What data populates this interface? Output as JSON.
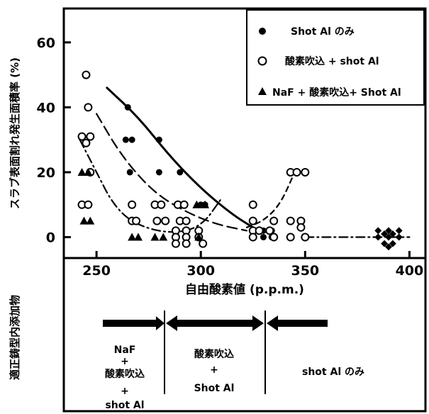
{
  "chart_data": {
    "type": "scatter",
    "title": "",
    "xlabel": "自由酸素値 (p.p.m.)",
    "ylabel": "スラブ表面割れ発生面積率 (%)",
    "xlim": [
      235,
      407
    ],
    "ylim": [
      -6,
      70
    ],
    "xticks": [
      250,
      300,
      350,
      400
    ],
    "yticks": [
      0,
      20,
      40,
      60
    ],
    "legend_position": "top-right",
    "series": [
      {
        "name": "Shot Al のみ",
        "marker": "filled-circle",
        "points": [
          [
            265,
            40
          ],
          [
            264,
            30
          ],
          [
            267,
            30
          ],
          [
            266,
            20
          ],
          [
            280,
            30
          ],
          [
            280,
            20
          ],
          [
            290,
            20
          ],
          [
            290,
            10
          ],
          [
            300,
            10
          ],
          [
            302,
            10
          ],
          [
            330,
            2
          ],
          [
            330,
            0
          ],
          [
            334,
            0
          ],
          [
            334,
            2
          ]
        ]
      },
      {
        "name": "酸素吹込 + shot Al",
        "marker": "open-circle",
        "points": [
          [
            245,
            50
          ],
          [
            246,
            40
          ],
          [
            243,
            31
          ],
          [
            245,
            29
          ],
          [
            247,
            31
          ],
          [
            247,
            20
          ],
          [
            243,
            10
          ],
          [
            246,
            10
          ],
          [
            267,
            10
          ],
          [
            267,
            5
          ],
          [
            269,
            5
          ],
          [
            278,
            10
          ],
          [
            281,
            10
          ],
          [
            279,
            5
          ],
          [
            283,
            5
          ],
          [
            289,
            10
          ],
          [
            292,
            10
          ],
          [
            290,
            5
          ],
          [
            293,
            5
          ],
          [
            288,
            2
          ],
          [
            288,
            0
          ],
          [
            288,
            -2
          ],
          [
            293,
            2
          ],
          [
            293,
            0
          ],
          [
            293,
            -2
          ],
          [
            299,
            2
          ],
          [
            299,
            0
          ],
          [
            301,
            -2
          ],
          [
            325,
            10
          ],
          [
            325,
            5
          ],
          [
            325,
            2
          ],
          [
            325,
            0
          ],
          [
            328,
            2
          ],
          [
            333,
            2
          ],
          [
            335,
            5
          ],
          [
            335,
            0
          ],
          [
            343,
            20
          ],
          [
            346,
            20
          ],
          [
            350,
            20
          ],
          [
            343,
            5
          ],
          [
            348,
            5
          ],
          [
            343,
            0
          ],
          [
            350,
            0
          ],
          [
            348,
            3
          ]
        ]
      },
      {
        "name": "NaF + 酸素吹込 + Shot Al",
        "marker": "filled-triangle",
        "points": [
          [
            243,
            20
          ],
          [
            246,
            20
          ],
          [
            244,
            5
          ],
          [
            247,
            5
          ],
          [
            267,
            0
          ],
          [
            270,
            0
          ],
          [
            278,
            0
          ],
          [
            282,
            0
          ],
          [
            298,
            10
          ],
          [
            302,
            10
          ],
          [
            299,
            0
          ]
        ]
      },
      {
        "name": "",
        "marker": "filled-diamond",
        "points": [
          [
            385,
            0
          ],
          [
            390,
            0
          ],
          [
            395,
            0
          ],
          [
            385,
            2
          ],
          [
            390,
            2
          ],
          [
            395,
            2
          ],
          [
            388,
            -2
          ],
          [
            392,
            -2
          ],
          [
            388,
            1
          ],
          [
            392,
            1
          ],
          [
            390,
            -3
          ]
        ]
      }
    ],
    "curves": [
      {
        "style": "solid",
        "points": [
          [
            255,
            46
          ],
          [
            270,
            37
          ],
          [
            285,
            25
          ],
          [
            300,
            15
          ],
          [
            315,
            7
          ],
          [
            325,
            3
          ]
        ]
      },
      {
        "style": "long-dash",
        "points": [
          [
            250,
            38
          ],
          [
            262,
            25
          ],
          [
            277,
            14
          ],
          [
            292,
            8
          ],
          [
            307,
            4
          ],
          [
            322,
            2
          ]
        ]
      },
      {
        "style": "short-dash",
        "points": [
          [
            322,
            3
          ],
          [
            330,
            5
          ],
          [
            338,
            10
          ],
          [
            345,
            20
          ]
        ]
      },
      {
        "style": "dash-dot",
        "points": [
          [
            242,
            30
          ],
          [
            250,
            20
          ],
          [
            258,
            10
          ],
          [
            268,
            4
          ],
          [
            285,
            1
          ],
          [
            300,
            3
          ],
          [
            310,
            12
          ]
        ]
      },
      {
        "style": "dash-dot",
        "points": [
          [
            350,
            0
          ],
          [
            400,
            0
          ]
        ]
      }
    ]
  },
  "legend": [
    {
      "marker": "filled-circle",
      "label": "Shot Al のみ"
    },
    {
      "marker": "open-circle",
      "label": "酸素吹込 + shot Al"
    },
    {
      "marker": "filled-triangle",
      "label": "NaF + 酸素吹込+ Shot Al"
    }
  ],
  "lower_panel": {
    "side_label": "適正鋳型内添加物",
    "zones": [
      {
        "lines": [
          "NaF",
          "+",
          "酸素吹込",
          "+",
          "shot Al"
        ]
      },
      {
        "lines": [
          "酸素吹込",
          "+",
          "Shot Al"
        ]
      },
      {
        "lines": [
          "shot Al のみ"
        ]
      }
    ]
  }
}
